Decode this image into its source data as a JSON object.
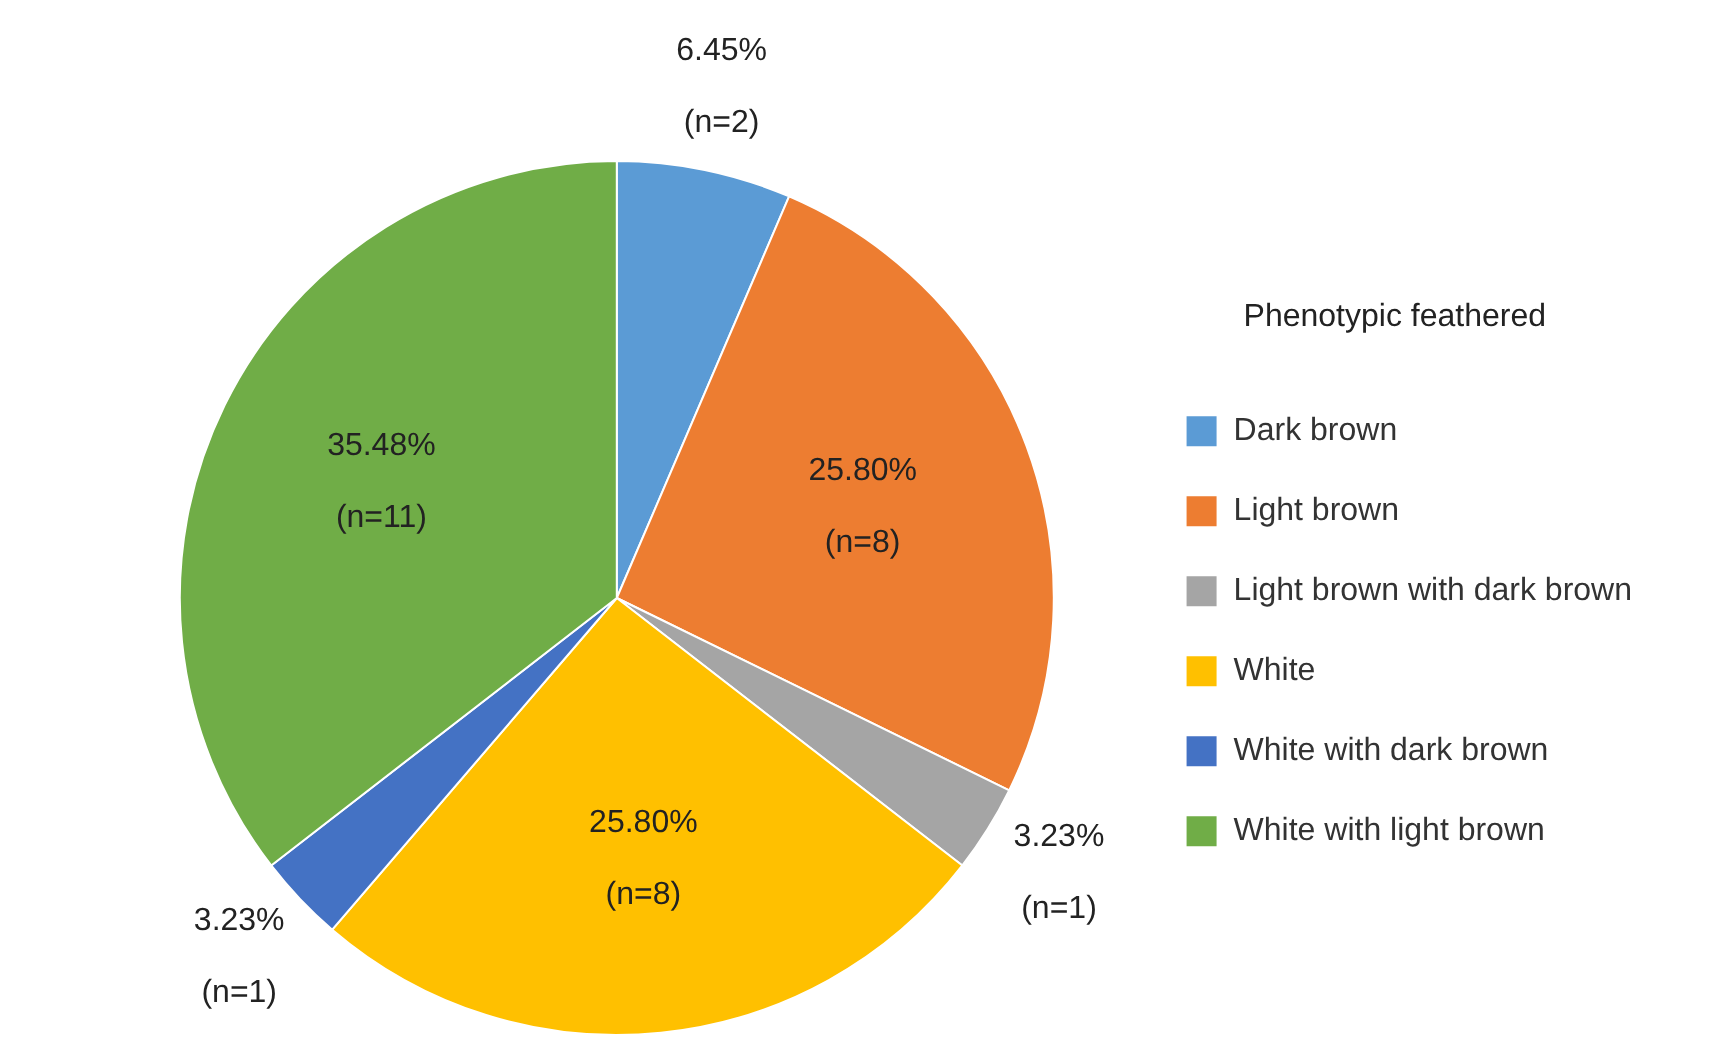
{
  "chart_data": {
    "type": "pie",
    "legend_title": "Phenotypic feathered",
    "legend": "right",
    "categories": [
      "Dark brown",
      "Light brown",
      "Light brown with dark brown",
      "White",
      "White with dark brown",
      "White with light brown"
    ],
    "values": [
      6.45,
      25.8,
      3.23,
      25.8,
      3.23,
      35.48
    ],
    "colors": [
      "#5b9bd5",
      "#ed7d31",
      "#a5a5a5",
      "#ffc000",
      "#4472c4",
      "#70ad47"
    ],
    "value_labels": [
      "6.45%\n(n=2)",
      "25.80%\n(n=8)",
      "3.23%\n(n=1)",
      "25.80%\n(n=8)",
      "3.23%\n(n=1)",
      "35.48%\n(n=11)"
    ]
  }
}
